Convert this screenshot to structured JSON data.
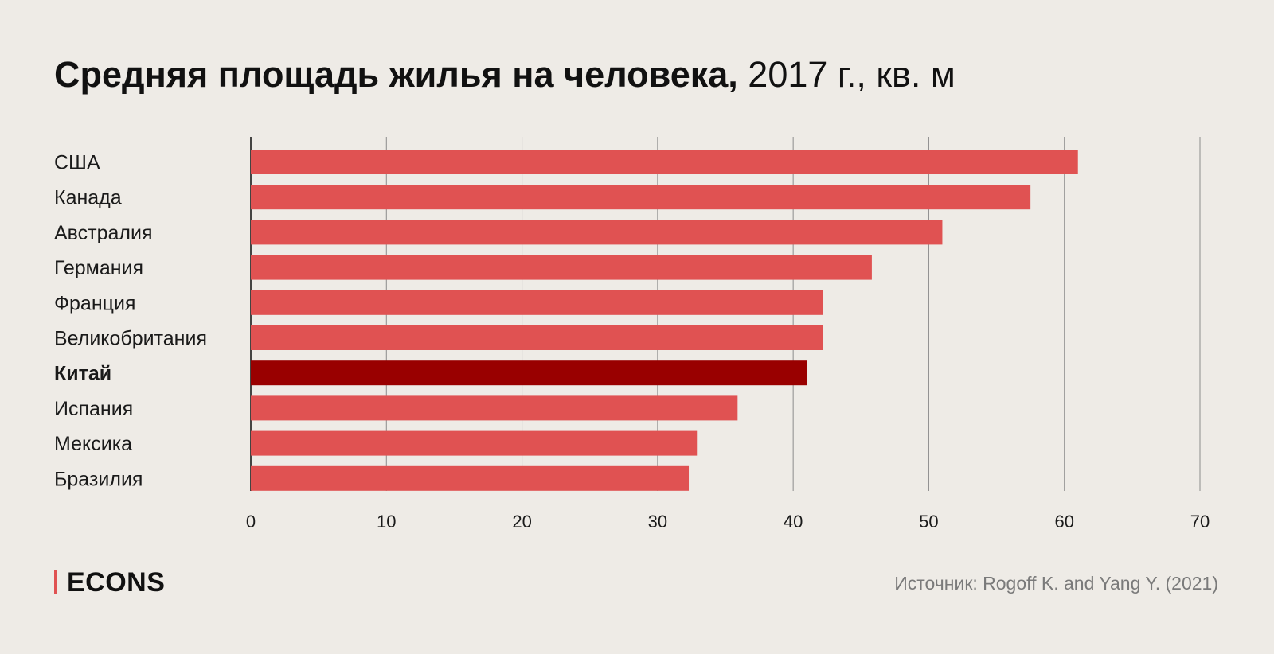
{
  "title": {
    "main": "Средняя площадь жилья на человека,",
    "rest": "2017 г., кв. м"
  },
  "chart_data": {
    "type": "bar",
    "orientation": "horizontal",
    "categories": [
      "США",
      "Канада",
      "Австралия",
      "Германия",
      "Франция",
      "Великобритания",
      "Китай",
      "Испания",
      "Мексика",
      "Бразилия"
    ],
    "values": [
      61,
      57.5,
      51,
      45.8,
      42.2,
      42.2,
      41,
      35.9,
      32.9,
      32.3
    ],
    "highlight": "Китай",
    "xlim": [
      0,
      70
    ],
    "xticks": [
      "0",
      "10",
      "20",
      "30",
      "40",
      "50",
      "60",
      "70"
    ],
    "grid": "vertical",
    "colors": {
      "bar": "#E05252",
      "highlight": "#990000",
      "grid": "#8C8C8C"
    }
  },
  "brand": "ECONS",
  "source": "Источник: Rogoff K. and Yang Y. (2021)"
}
